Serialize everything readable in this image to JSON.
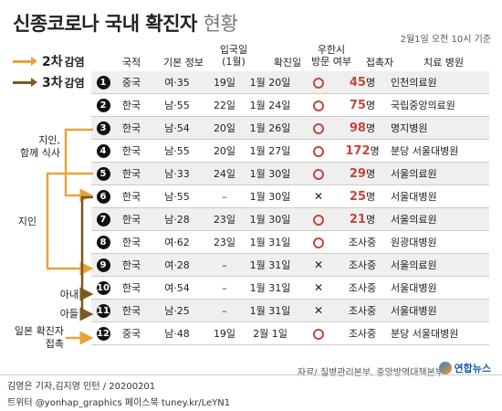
{
  "title": {
    "main": "신종코로나 국내 확진자",
    "sub": "현황"
  },
  "dateline": "2월1일 오전 10시 기준",
  "legend": [
    {
      "num": "2차",
      "label": "감염",
      "color": "#e6a43a"
    },
    {
      "num": "3차",
      "label": "감염",
      "color": "#7a5a1e"
    }
  ],
  "headers": {
    "nationality": "국적",
    "basic": "기본 정보",
    "entry": "입국일",
    "entry_sub": "(1월)",
    "confirmed": "확진일",
    "wuhan": "우한시",
    "wuhan_sub": "방문 여부",
    "contacts": "접촉자",
    "hospital": "치료 병원"
  },
  "rows": [
    {
      "idx": "1",
      "nat": "중국",
      "info": "여·35",
      "entry": "19일",
      "conf": "1월 20일",
      "visit": "O",
      "contacts": "45",
      "unit": "명",
      "hosp": "인천의료원"
    },
    {
      "idx": "2",
      "nat": "한국",
      "info": "남·55",
      "entry": "22일",
      "conf": "1월 24일",
      "visit": "O",
      "contacts": "75",
      "unit": "명",
      "hosp": "국립중앙의료원"
    },
    {
      "idx": "3",
      "nat": "한국",
      "info": "남·54",
      "entry": "20일",
      "conf": "1월 26일",
      "visit": "O",
      "contacts": "98",
      "unit": "명",
      "hosp": "명지병원"
    },
    {
      "idx": "4",
      "nat": "한국",
      "info": "남·55",
      "entry": "20일",
      "conf": "1월 27일",
      "visit": "O",
      "contacts": "172",
      "unit": "명",
      "hosp": "분당 서울대병원"
    },
    {
      "idx": "5",
      "nat": "한국",
      "info": "남·33",
      "entry": "24일",
      "conf": "1월 30일",
      "visit": "O",
      "contacts": "29",
      "unit": "명",
      "hosp": "서울의료원"
    },
    {
      "idx": "6",
      "nat": "한국",
      "info": "남·55",
      "entry": "–",
      "conf": "1월 30일",
      "visit": "X",
      "contacts": "25",
      "unit": "명",
      "hosp": "서울대병원"
    },
    {
      "idx": "7",
      "nat": "한국",
      "info": "남·28",
      "entry": "23일",
      "conf": "1월 30일",
      "visit": "O",
      "contacts": "21",
      "unit": "명",
      "hosp": "서울의료원"
    },
    {
      "idx": "8",
      "nat": "한국",
      "info": "여·62",
      "entry": "23일",
      "conf": "1월 31일",
      "visit": "O",
      "contacts": "조사중",
      "unit": "",
      "hosp": "원광대병원"
    },
    {
      "idx": "9",
      "nat": "한국",
      "info": "여·28",
      "entry": "–",
      "conf": "1월 31일",
      "visit": "X",
      "contacts": "조사중",
      "unit": "",
      "hosp": "서울의료원"
    },
    {
      "idx": "10",
      "nat": "한국",
      "info": "여·54",
      "entry": "–",
      "conf": "1월 31일",
      "visit": "X",
      "contacts": "조사중",
      "unit": "",
      "hosp": "서울대병원"
    },
    {
      "idx": "11",
      "nat": "한국",
      "info": "남·25",
      "entry": "–",
      "conf": "1월 31일",
      "visit": "X",
      "contacts": "조사중",
      "unit": "",
      "hosp": "서울대병원"
    },
    {
      "idx": "12",
      "nat": "중국",
      "info": "남·48",
      "entry": "19일",
      "conf": "2월 1일",
      "visit": "O",
      "contacts": "조사중",
      "unit": "",
      "hosp": "분당 서울대병원"
    }
  ],
  "relations": {
    "r1a": "지인,",
    "r1b": "함께 식사",
    "r2": "지인",
    "r3": "아내",
    "r4": "아들",
    "r5a": "일본 확진자",
    "r5b": "접촉"
  },
  "source": "자료/ 질병관리본부, 중앙방역대책본부",
  "logo": "연합뉴스",
  "credit1": "김영은 기자,김지영 인턴 / 20200201",
  "credit2": "트위터 @yonhap_graphics  페이스북 tuney.kr/LeYN1"
}
